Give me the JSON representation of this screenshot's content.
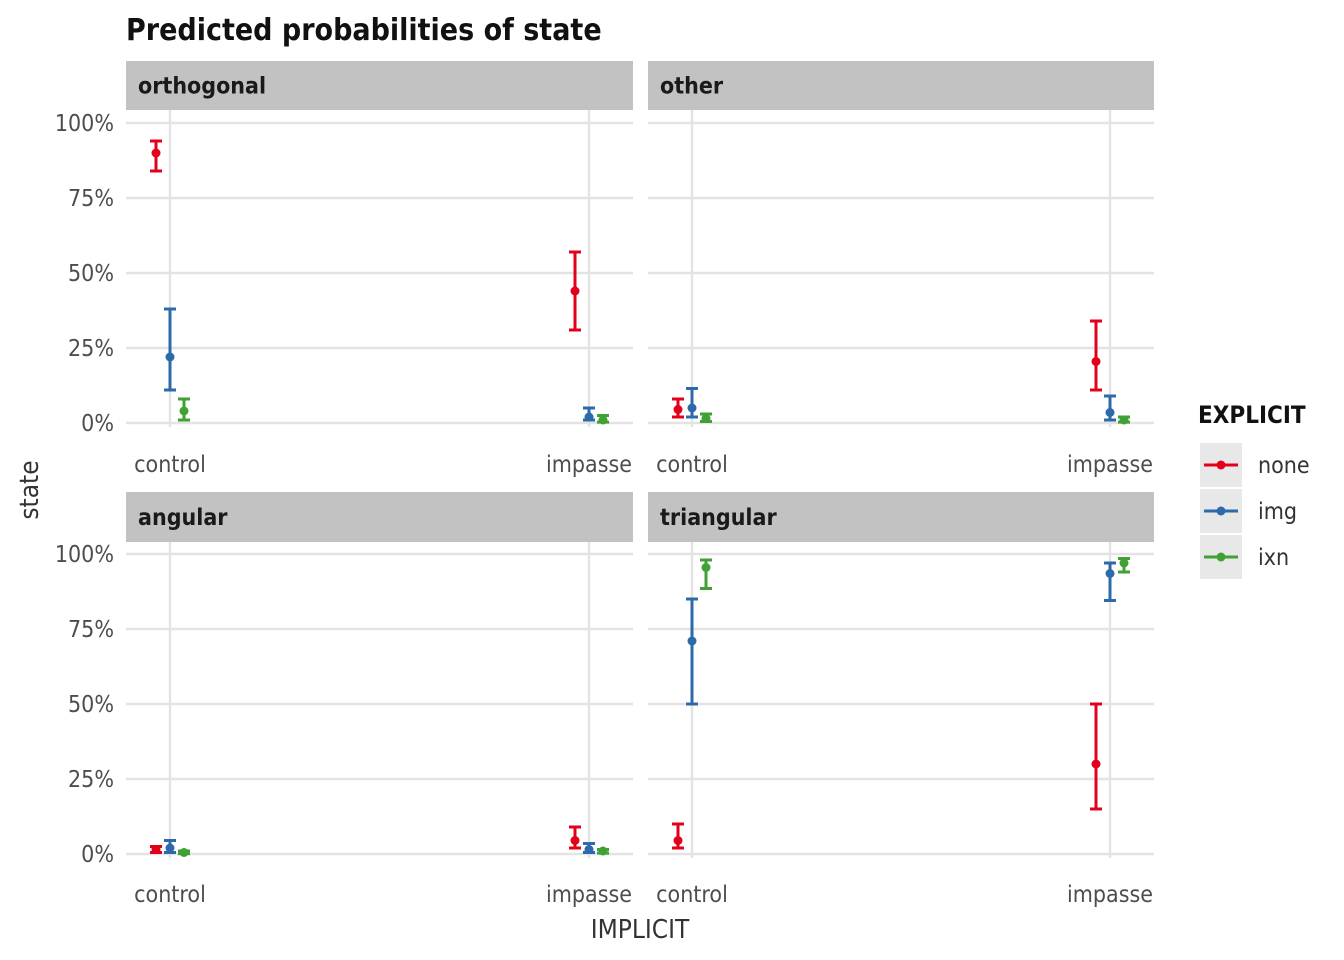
{
  "chart_data": {
    "type": "errorbar-facet",
    "title": "Predicted probabilities of state",
    "xlabel": "IMPLICIT",
    "ylabel": "state",
    "ylim": [
      0,
      1
    ],
    "y_ticks": [
      0,
      0.25,
      0.5,
      0.75,
      1
    ],
    "y_tick_labels": [
      "0%",
      "25%",
      "50%",
      "75%",
      "100%"
    ],
    "categories": [
      "control",
      "impasse"
    ],
    "grid": true,
    "legend": {
      "title": "EXPLICIT",
      "placement": "right",
      "entries": [
        {
          "name": "none",
          "color": "#e3001b"
        },
        {
          "name": "img",
          "color": "#2d6aaa"
        },
        {
          "name": "ixn",
          "color": "#41a135"
        }
      ]
    },
    "facets": [
      {
        "label": "orthogonal",
        "series": [
          {
            "name": "none",
            "points": [
              {
                "x": "control",
                "y": 0.9,
                "lo": 0.84,
                "hi": 0.94
              },
              {
                "x": "impasse",
                "y": 0.44,
                "lo": 0.31,
                "hi": 0.57
              }
            ]
          },
          {
            "name": "img",
            "points": [
              {
                "x": "control",
                "y": 0.22,
                "lo": 0.11,
                "hi": 0.38
              },
              {
                "x": "impasse",
                "y": 0.02,
                "lo": 0.01,
                "hi": 0.05
              }
            ]
          },
          {
            "name": "ixn",
            "points": [
              {
                "x": "control",
                "y": 0.04,
                "lo": 0.01,
                "hi": 0.08
              },
              {
                "x": "impasse",
                "y": 0.01,
                "lo": 0.003,
                "hi": 0.025
              }
            ]
          }
        ]
      },
      {
        "label": "other",
        "series": [
          {
            "name": "none",
            "points": [
              {
                "x": "control",
                "y": 0.045,
                "lo": 0.02,
                "hi": 0.08
              },
              {
                "x": "impasse",
                "y": 0.205,
                "lo": 0.11,
                "hi": 0.34
              }
            ]
          },
          {
            "name": "img",
            "points": [
              {
                "x": "control",
                "y": 0.05,
                "lo": 0.02,
                "hi": 0.115
              },
              {
                "x": "impasse",
                "y": 0.035,
                "lo": 0.01,
                "hi": 0.09
              }
            ]
          },
          {
            "name": "ixn",
            "points": [
              {
                "x": "control",
                "y": 0.015,
                "lo": 0.005,
                "hi": 0.03
              },
              {
                "x": "impasse",
                "y": 0.01,
                "lo": 0.003,
                "hi": 0.02
              }
            ]
          }
        ]
      },
      {
        "label": "angular",
        "series": [
          {
            "name": "none",
            "points": [
              {
                "x": "control",
                "y": 0.015,
                "lo": 0.005,
                "hi": 0.025
              },
              {
                "x": "impasse",
                "y": 0.045,
                "lo": 0.02,
                "hi": 0.09
              }
            ]
          },
          {
            "name": "img",
            "points": [
              {
                "x": "control",
                "y": 0.02,
                "lo": 0.005,
                "hi": 0.045
              },
              {
                "x": "impasse",
                "y": 0.015,
                "lo": 0.005,
                "hi": 0.035
              }
            ]
          },
          {
            "name": "ixn",
            "points": [
              {
                "x": "control",
                "y": 0.005,
                "lo": 0.001,
                "hi": 0.01
              },
              {
                "x": "impasse",
                "y": 0.01,
                "lo": 0.003,
                "hi": 0.015
              }
            ]
          }
        ]
      },
      {
        "label": "triangular",
        "series": [
          {
            "name": "none",
            "points": [
              {
                "x": "control",
                "y": 0.045,
                "lo": 0.02,
                "hi": 0.1
              },
              {
                "x": "impasse",
                "y": 0.3,
                "lo": 0.15,
                "hi": 0.5
              }
            ]
          },
          {
            "name": "img",
            "points": [
              {
                "x": "control",
                "y": 0.71,
                "lo": 0.5,
                "hi": 0.85
              },
              {
                "x": "impasse",
                "y": 0.935,
                "lo": 0.845,
                "hi": 0.97
              }
            ]
          },
          {
            "name": "ixn",
            "points": [
              {
                "x": "control",
                "y": 0.955,
                "lo": 0.885,
                "hi": 0.98
              },
              {
                "x": "impasse",
                "y": 0.97,
                "lo": 0.94,
                "hi": 0.985
              }
            ]
          }
        ]
      }
    ]
  }
}
